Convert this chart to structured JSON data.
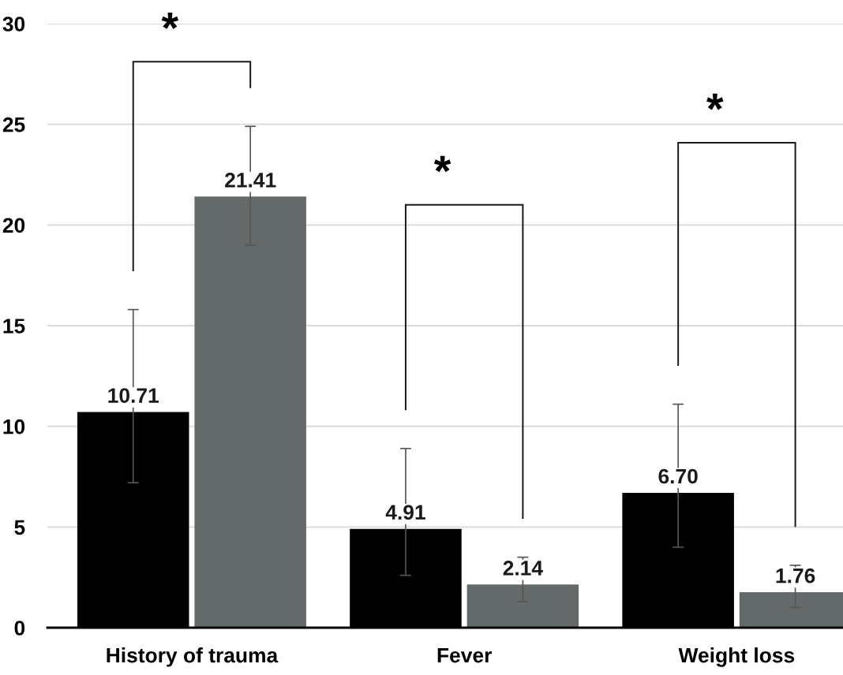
{
  "chart_data": {
    "type": "bar",
    "categories": [
      "History of trauma",
      "Fever",
      "Weight loss"
    ],
    "series": [
      {
        "color": "#000000",
        "values": [
          10.71,
          4.91,
          6.7
        ],
        "value_labels": [
          "10.71",
          "4.91",
          "6.70"
        ],
        "errors": [
          [
            7.2,
            15.8
          ],
          [
            2.6,
            8.9
          ],
          [
            4.0,
            11.1
          ]
        ]
      },
      {
        "color": "#646a6a",
        "values": [
          21.41,
          2.14,
          1.76
        ],
        "value_labels": [
          "21.41",
          "2.14",
          "1.76"
        ],
        "errors": [
          [
            19.0,
            24.9
          ],
          [
            1.3,
            3.5
          ],
          [
            1.0,
            3.1
          ]
        ]
      }
    ],
    "ylim": [
      0,
      30
    ],
    "yticks": [
      0,
      5,
      10,
      15,
      20,
      25,
      30
    ],
    "grid": "y",
    "annotations": [
      "*",
      "*",
      "*"
    ]
  }
}
